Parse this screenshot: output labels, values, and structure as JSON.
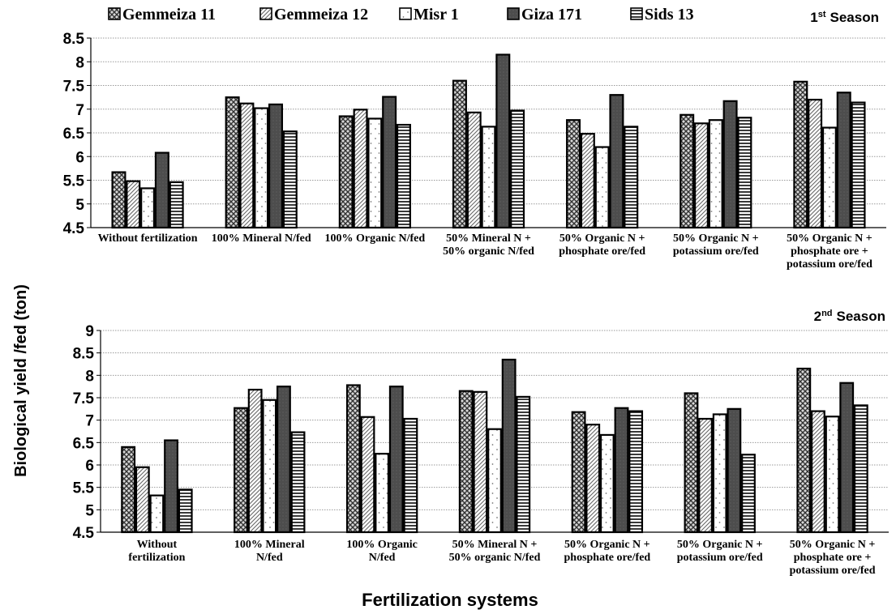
{
  "legend": {
    "items": [
      "Gemmeiza 11",
      "Gemmeiza 12",
      "Misr 1",
      "Giza 171",
      "Sids 13"
    ],
    "patterns": [
      "crosshatch",
      "diagonal",
      "dots",
      "solid-dark",
      "horizontal"
    ]
  },
  "y_axis_label": "Biological yield /fed (ton)",
  "x_axis_label": "Fertilization systems",
  "chart_data": [
    {
      "type": "bar",
      "season_label": {
        "number": "1",
        "superscript": "st",
        "text": "Season"
      },
      "categories": [
        [
          "Without fertilization"
        ],
        [
          "100% Mineral N/fed"
        ],
        [
          "100% Organic N/fed"
        ],
        [
          "50% Mineral N +",
          "50% organic N/fed"
        ],
        [
          "50% Organic N +",
          "phosphate ore/fed"
        ],
        [
          "50% Organic N +",
          "potassium ore/fed"
        ],
        [
          "50% Organic N +",
          "phosphate ore +",
          "potassium ore/fed"
        ]
      ],
      "series": [
        {
          "name": "Gemmeiza 11",
          "values": [
            5.67,
            7.25,
            6.85,
            7.6,
            6.77,
            6.88,
            7.58
          ]
        },
        {
          "name": "Gemmeiza 12",
          "values": [
            5.48,
            7.12,
            6.99,
            6.93,
            6.48,
            6.7,
            7.2
          ]
        },
        {
          "name": "Misr 1",
          "values": [
            5.33,
            7.02,
            6.8,
            6.63,
            6.2,
            6.77,
            6.61
          ]
        },
        {
          "name": "Giza 171",
          "values": [
            6.08,
            7.1,
            7.26,
            8.15,
            7.3,
            7.17,
            7.35
          ]
        },
        {
          "name": "Sids 13",
          "values": [
            5.46,
            6.53,
            6.67,
            6.97,
            6.63,
            6.82,
            7.14
          ]
        }
      ],
      "ylim": [
        4.5,
        8.5
      ],
      "yticks": [
        "4.5",
        "5",
        "5.5",
        "6",
        "6.5",
        "7",
        "7.5",
        "8",
        "8.5"
      ],
      "grid": true
    },
    {
      "type": "bar",
      "season_label": {
        "number": "2",
        "superscript": "nd",
        "text": "Season"
      },
      "categories": [
        [
          "Without",
          "fertilization"
        ],
        [
          "100% Mineral",
          "N/fed"
        ],
        [
          "100% Organic",
          "N/fed"
        ],
        [
          "50% Mineral N +",
          "50% organic N/fed"
        ],
        [
          "50% Organic N +",
          "phosphate ore/fed"
        ],
        [
          "50% Organic N +",
          "potassium ore/fed"
        ],
        [
          "50% Organic N +",
          "phosphate ore +",
          "potassium ore/fed"
        ]
      ],
      "series": [
        {
          "name": "Gemmeiza 11",
          "values": [
            6.4,
            7.27,
            7.78,
            7.65,
            7.18,
            7.6,
            8.15
          ]
        },
        {
          "name": "Gemmeiza 12",
          "values": [
            5.95,
            7.68,
            7.07,
            7.63,
            6.9,
            7.03,
            7.2
          ]
        },
        {
          "name": "Misr 1",
          "values": [
            5.32,
            7.45,
            6.25,
            6.8,
            6.67,
            7.13,
            7.08
          ]
        },
        {
          "name": "Giza 171",
          "values": [
            6.55,
            7.75,
            7.75,
            8.35,
            7.27,
            7.25,
            7.83
          ]
        },
        {
          "name": "Sids 13",
          "values": [
            5.45,
            6.73,
            7.03,
            7.52,
            7.2,
            6.23,
            7.33
          ]
        }
      ],
      "ylim": [
        4.5,
        9
      ],
      "yticks": [
        "4.5",
        "5",
        "5.5",
        "6",
        "6.5",
        "7",
        "7.5",
        "8",
        "8.5",
        "9"
      ],
      "grid": true
    }
  ]
}
